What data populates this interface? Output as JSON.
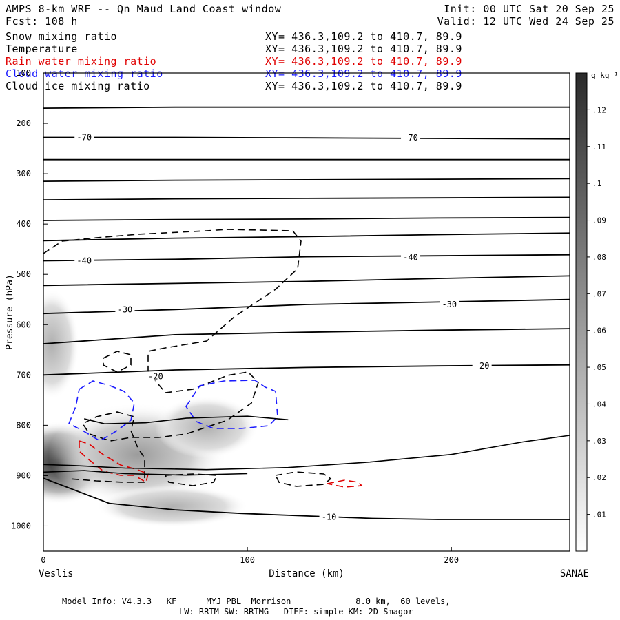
{
  "header": {
    "title_left": "AMPS 8-km WRF -- Qn Maud Land Coast window",
    "title_right": "Init: 00 UTC Sat 20 Sep 25",
    "fcst": "Fcst: 108 h",
    "valid": "Valid: 12 UTC Wed 24 Sep 25"
  },
  "fields": [
    {
      "name": "Snow mixing ratio",
      "xy": "XY= 436.3,109.2 to 410.7, 89.9",
      "color": "#000000"
    },
    {
      "name": "Temperature",
      "xy": "XY= 436.3,109.2 to 410.7, 89.9",
      "color": "#000000"
    },
    {
      "name": "Rain water mixing ratio",
      "xy": "XY= 436.3,109.2 to 410.7, 89.9",
      "color": "#e00000"
    },
    {
      "name": "Cloud water mixing ratio",
      "xy": "XY= 436.3,109.2 to 410.7, 89.9",
      "color": "#1a1aff"
    },
    {
      "name": "Cloud ice mixing ratio",
      "xy": "XY= 436.3,109.2 to 410.7, 89.9",
      "color": "#000000"
    }
  ],
  "chart_data": {
    "type": "contour",
    "xlabel": "Distance (km)",
    "ylabel": "Pressure (hPa)",
    "xlim": [
      0,
      258
    ],
    "ylim": [
      1050,
      100
    ],
    "x_ticks": [
      0,
      100,
      200
    ],
    "y_ticks": [
      100,
      200,
      300,
      400,
      500,
      600,
      700,
      800,
      900,
      1000
    ],
    "x_end_labels": {
      "left": "Veslis",
      "right": "SANAE"
    },
    "colorbar": {
      "unit": "g kg⁻¹",
      "range": [
        0,
        0.13
      ],
      "tick_labels": [
        ".01",
        ".02",
        ".03",
        ".04",
        ".05",
        ".06",
        ".07",
        ".08",
        ".09",
        ".1",
        ".11",
        ".12"
      ]
    },
    "temperature_isotherms": [
      {
        "p": [
          170,
          168,
          168,
          168,
          168
        ]
      },
      {
        "label": "-70",
        "p": [
          228,
          228,
          229,
          230,
          231
        ]
      },
      {
        "p": [
          272,
          272,
          272,
          272,
          272
        ]
      },
      {
        "p": [
          315,
          313,
          312,
          311,
          310
        ]
      },
      {
        "p": [
          352,
          350,
          349,
          348,
          347
        ]
      },
      {
        "p": [
          393,
          391,
          390,
          388,
          387
        ]
      },
      {
        "p": [
          433,
          428,
          425,
          421,
          418
        ]
      },
      {
        "label": "-40",
        "p": [
          473,
          470,
          465,
          463,
          461
        ]
      },
      {
        "p": [
          522,
          518,
          514,
          508,
          503
        ]
      },
      {
        "label": "-30",
        "p": [
          578,
          570,
          560,
          555,
          550
        ]
      },
      {
        "p": [
          638,
          620,
          615,
          611,
          608
        ]
      },
      {
        "label": "-20",
        "p": [
          700,
          690,
          685,
          682,
          680
        ]
      },
      {
        "label": "-10",
        "p": [
          905,
          955,
          968,
          975,
          980,
          985,
          987,
          987,
          987
        ]
      }
    ],
    "contour_labels": [
      {
        "text": "-70",
        "x": 20,
        "p": 228
      },
      {
        "text": "-70",
        "x": 180,
        "p": 229
      },
      {
        "text": "-40",
        "x": 20,
        "p": 473
      },
      {
        "text": "-40",
        "x": 180,
        "p": 466
      },
      {
        "text": "-30",
        "x": 40,
        "p": 570
      },
      {
        "text": "-30",
        "x": 199,
        "p": 560
      },
      {
        "text": "-20",
        "x": 215,
        "p": 682
      },
      {
        "text": "-20",
        "x": 55,
        "p": 703
      },
      {
        "text": "-10",
        "x": 140,
        "p": 982
      }
    ],
    "snow_max": {
      "x": 8,
      "p": 900,
      "value": 0.12
    }
  },
  "footer": {
    "line1": "Model Info: V4.3.3   KF      MYJ PBL  Morrison             8.0 km,  60 levels,",
    "line2": "LW: RRTM SW: RRTMG   DIFF: simple KM: 2D Smagor"
  }
}
